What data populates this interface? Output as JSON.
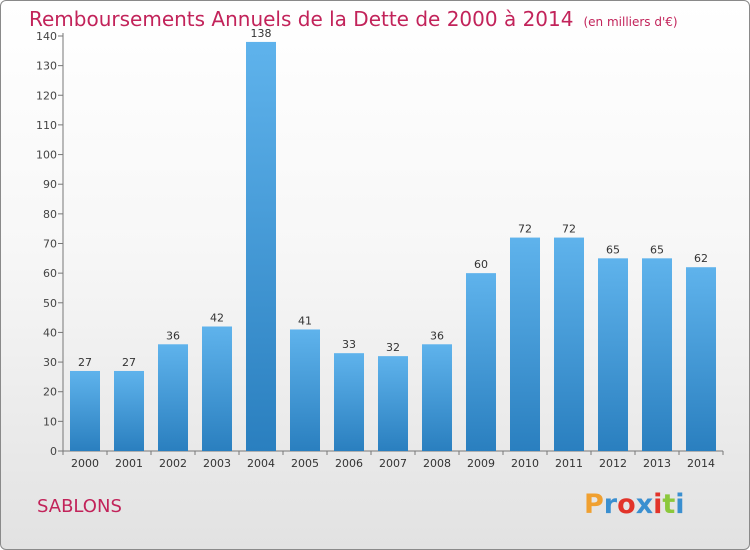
{
  "title": "Remboursements Annuels de la Dette de 2000 à 2014",
  "unit_note": "(en milliers d'€)",
  "commune": "SABLONS",
  "logo_text": "Proxiti",
  "colors": {
    "title": "#c2235a",
    "bar_top": "#5fb3ec",
    "bar_bottom": "#2a7fbf",
    "logo": [
      "#f0a030",
      "#3a8fd0",
      "#e2342a",
      "#3a8fd0",
      "#e2342a",
      "#8cc83c",
      "#3a8fd0"
    ]
  },
  "chart_data": {
    "type": "bar",
    "categories": [
      "2000",
      "2001",
      "2002",
      "2003",
      "2004",
      "2005",
      "2006",
      "2007",
      "2008",
      "2009",
      "2010",
      "2011",
      "2012",
      "2013",
      "2014"
    ],
    "values": [
      27,
      27,
      36,
      42,
      138,
      41,
      33,
      32,
      36,
      60,
      72,
      72,
      65,
      65,
      62
    ],
    "ylim": [
      0,
      140
    ],
    "yticks": [
      0,
      10,
      20,
      30,
      40,
      50,
      60,
      70,
      80,
      90,
      100,
      110,
      120,
      130,
      140
    ],
    "grid": false,
    "data_labels": true
  }
}
